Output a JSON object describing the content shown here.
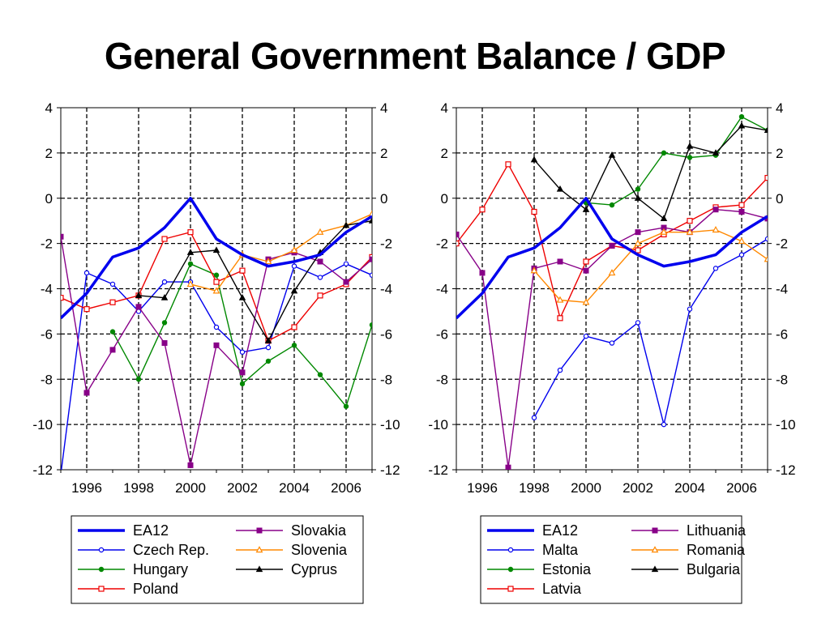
{
  "title": "General Government Balance / GDP",
  "chart_data": [
    {
      "type": "line",
      "ylim": [
        -12,
        4
      ],
      "yticks": [
        4,
        2,
        0,
        -2,
        -4,
        -6,
        -8,
        -10,
        -12
      ],
      "xlim": [
        1995,
        2007
      ],
      "xticks": [
        1996,
        1998,
        2000,
        2002,
        2004,
        2006
      ],
      "grid": true,
      "legend_position": "below",
      "series": [
        {
          "name": "EA12",
          "color": "#0000ee",
          "marker": "none",
          "width": 3.5,
          "x": [
            1995,
            1996,
            1997,
            1998,
            1999,
            2000,
            2001,
            2002,
            2003,
            2004,
            2005,
            2006,
            2007
          ],
          "y": [
            -5.3,
            -4.2,
            -2.6,
            -2.2,
            -1.3,
            0.0,
            -1.8,
            -2.5,
            -3.0,
            -2.8,
            -2.5,
            -1.5,
            -0.8
          ]
        },
        {
          "name": "Czech Rep.",
          "color": "#0000ee",
          "marker": "circle",
          "width": 1.4,
          "x": [
            1995,
            1996,
            1997,
            1998,
            1999,
            2000,
            2001,
            2002,
            2003,
            2004,
            2005,
            2006,
            2007
          ],
          "y": [
            -12.2,
            -3.3,
            -3.8,
            -5.0,
            -3.7,
            -3.7,
            -5.7,
            -6.8,
            -6.6,
            -3.0,
            -3.5,
            -2.9,
            -3.4
          ]
        },
        {
          "name": "Hungary",
          "color": "#008800",
          "marker": "dot",
          "width": 1.4,
          "x": [
            1997,
            1998,
            1999,
            2000,
            2001,
            2002,
            2003,
            2004,
            2005,
            2006,
            2007
          ],
          "y": [
            -5.9,
            -8.0,
            -5.5,
            -2.9,
            -3.4,
            -8.2,
            -7.2,
            -6.5,
            -7.8,
            -9.2,
            -5.6
          ]
        },
        {
          "name": "Poland",
          "color": "#ee0000",
          "marker": "square-open",
          "width": 1.4,
          "x": [
            1995,
            1996,
            1997,
            1998,
            1999,
            2000,
            2001,
            2002,
            2003,
            2004,
            2005,
            2006,
            2007
          ],
          "y": [
            -4.4,
            -4.9,
            -4.6,
            -4.3,
            -1.8,
            -1.5,
            -3.7,
            -3.2,
            -6.3,
            -5.7,
            -4.3,
            -3.8,
            -2.6
          ]
        },
        {
          "name": "Slovakia",
          "color": "#880088",
          "marker": "square",
          "width": 1.4,
          "x": [
            1995,
            1996,
            1997,
            1998,
            1999,
            2000,
            2001,
            2002,
            2003,
            2004,
            2005,
            2006,
            2007
          ],
          "y": [
            -1.7,
            -8.6,
            -6.7,
            -4.8,
            -6.4,
            -11.8,
            -6.5,
            -7.7,
            -2.7,
            -2.4,
            -2.8,
            -3.7,
            -2.7
          ]
        },
        {
          "name": "Slovenia",
          "color": "#ff8800",
          "marker": "triangle-open",
          "width": 1.4,
          "x": [
            2000,
            2001,
            2002,
            2003,
            2004,
            2005,
            2006,
            2007
          ],
          "y": [
            -3.8,
            -4.1,
            -2.5,
            -2.8,
            -2.3,
            -1.5,
            -1.2,
            -0.7
          ]
        },
        {
          "name": "Cyprus",
          "color": "#000000",
          "marker": "triangle",
          "width": 1.4,
          "x": [
            1998,
            1999,
            2000,
            2001,
            2002,
            2003,
            2004,
            2005,
            2006,
            2007
          ],
          "y": [
            -4.3,
            -4.4,
            -2.4,
            -2.3,
            -4.4,
            -6.3,
            -4.1,
            -2.4,
            -1.2,
            -1.0
          ]
        }
      ]
    },
    {
      "type": "line",
      "ylim": [
        -12,
        4
      ],
      "yticks": [
        4,
        2,
        0,
        -2,
        -4,
        -6,
        -8,
        -10,
        -12
      ],
      "xlim": [
        1995,
        2007
      ],
      "xticks": [
        1996,
        1998,
        2000,
        2002,
        2004,
        2006
      ],
      "grid": true,
      "legend_position": "below",
      "series": [
        {
          "name": "EA12",
          "color": "#0000ee",
          "marker": "none",
          "width": 3.5,
          "x": [
            1995,
            1996,
            1997,
            1998,
            1999,
            2000,
            2001,
            2002,
            2003,
            2004,
            2005,
            2006,
            2007
          ],
          "y": [
            -5.3,
            -4.2,
            -2.6,
            -2.2,
            -1.3,
            0.0,
            -1.8,
            -2.5,
            -3.0,
            -2.8,
            -2.5,
            -1.5,
            -0.8
          ]
        },
        {
          "name": "Malta",
          "color": "#0000ee",
          "marker": "circle",
          "width": 1.4,
          "x": [
            1998,
            1999,
            2000,
            2001,
            2002,
            2003,
            2004,
            2005,
            2006,
            2007
          ],
          "y": [
            -9.7,
            -7.6,
            -6.1,
            -6.4,
            -5.5,
            -10.0,
            -4.9,
            -3.1,
            -2.5,
            -1.8
          ]
        },
        {
          "name": "Estonia",
          "color": "#008800",
          "marker": "dot",
          "width": 1.4,
          "x": [
            2000,
            2001,
            2002,
            2003,
            2004,
            2005,
            2006,
            2007
          ],
          "y": [
            -0.2,
            -0.3,
            0.4,
            2.0,
            1.8,
            1.9,
            3.6,
            3.0
          ]
        },
        {
          "name": "Latvia",
          "color": "#ee0000",
          "marker": "square-open",
          "width": 1.4,
          "x": [
            1995,
            1996,
            1997,
            1998,
            1999,
            2000,
            2001,
            2002,
            2003,
            2004,
            2005,
            2006,
            2007
          ],
          "y": [
            -2.0,
            -0.5,
            1.5,
            -0.6,
            -5.3,
            -2.8,
            -2.1,
            -2.3,
            -1.6,
            -1.0,
            -0.4,
            -0.3,
            0.9
          ]
        },
        {
          "name": "Lithuania",
          "color": "#880088",
          "marker": "square",
          "width": 1.4,
          "x": [
            1995,
            1996,
            1997,
            1998,
            1999,
            2000,
            2001,
            2002,
            2003,
            2004,
            2005,
            2006,
            2007
          ],
          "y": [
            -1.6,
            -3.3,
            -11.9,
            -3.1,
            -2.8,
            -3.2,
            -2.1,
            -1.5,
            -1.3,
            -1.5,
            -0.5,
            -0.6,
            -0.9
          ]
        },
        {
          "name": "Romania",
          "color": "#ff8800",
          "marker": "triangle-open",
          "width": 1.4,
          "x": [
            1998,
            1999,
            2000,
            2001,
            2002,
            2003,
            2004,
            2005,
            2006,
            2007
          ],
          "y": [
            -3.2,
            -4.5,
            -4.6,
            -3.3,
            -2.0,
            -1.5,
            -1.5,
            -1.4,
            -1.9,
            -2.7
          ]
        },
        {
          "name": "Bulgaria",
          "color": "#000000",
          "marker": "triangle",
          "width": 1.4,
          "x": [
            1998,
            1999,
            2000,
            2001,
            2002,
            2003,
            2004,
            2005,
            2006,
            2007
          ],
          "y": [
            1.7,
            0.4,
            -0.5,
            1.9,
            0.0,
            -0.9,
            2.3,
            2.0,
            3.2,
            3.0
          ]
        }
      ]
    }
  ]
}
